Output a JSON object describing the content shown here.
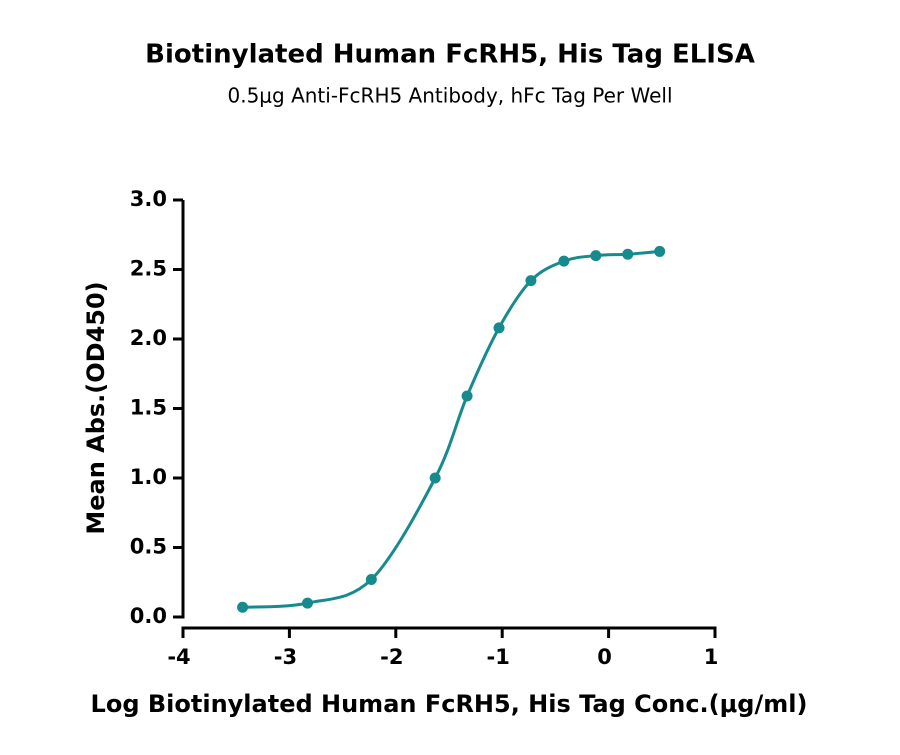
{
  "chart_data": {
    "type": "scatter",
    "title": "Biotinylated Human FcRH5, His Tag ELISA",
    "subtitle": "0.5μg Anti-FcRH5 Antibody, hFc Tag Per Well",
    "x_label": "Log Biotinylated Human FcRH5, His Tag Conc.(μg/ml)",
    "y_label": "Mean Abs.(OD450)",
    "x": [
      -3.44,
      -2.83,
      -2.23,
      -1.63,
      -1.33,
      -1.03,
      -0.73,
      -0.42,
      -0.12,
      0.18,
      0.48
    ],
    "values": [
      0.07,
      0.1,
      0.27,
      1.0,
      1.59,
      2.08,
      2.42,
      2.56,
      2.6,
      2.61,
      2.63
    ],
    "color": "#168a8c",
    "fit_line": true,
    "xlim": [
      -4,
      1
    ],
    "xticks": [
      -4,
      -3,
      -2,
      -1,
      0,
      1
    ],
    "ylim": [
      0,
      3
    ],
    "yticks": [
      {
        "value": 0,
        "label": "0.0"
      },
      {
        "value": 0.5,
        "label": "0.5"
      },
      {
        "value": 1,
        "label": "1.0"
      },
      {
        "value": 1.5,
        "label": "1.5"
      },
      {
        "value": 2,
        "label": "2.0"
      },
      {
        "value": 2.5,
        "label": "2.5"
      },
      {
        "value": 3,
        "label": "3.0"
      }
    ]
  }
}
